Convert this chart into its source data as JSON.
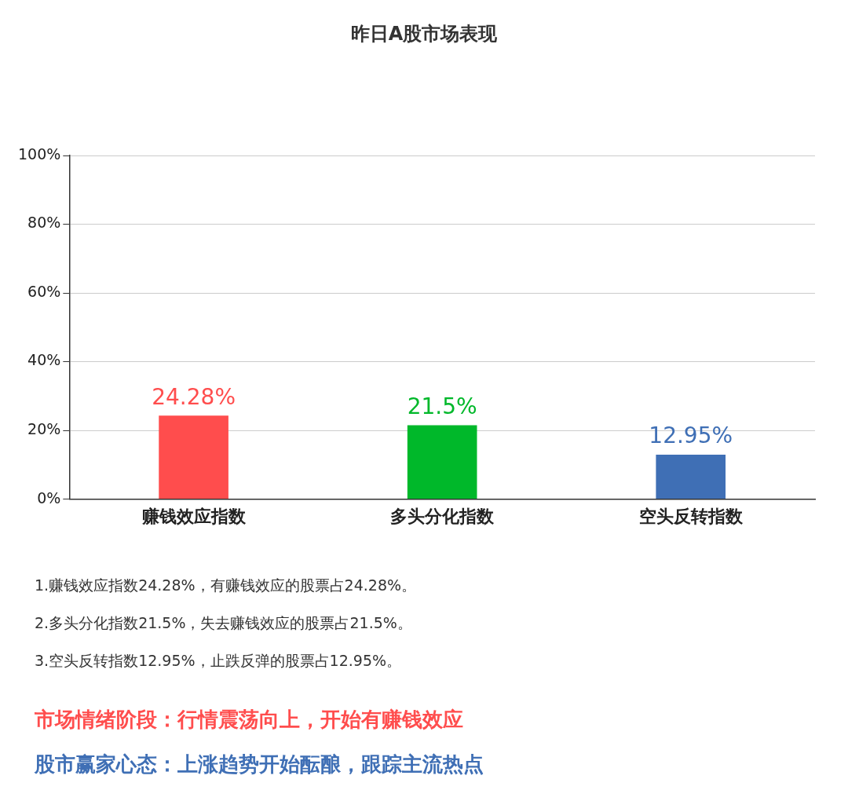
{
  "chart_data": {
    "type": "bar",
    "title": "昨日A股市场表现",
    "categories": [
      "赚钱效应指数",
      "多头分化指数",
      "空头反转指数"
    ],
    "values": [
      24.28,
      21.5,
      12.95
    ],
    "colors": [
      "#ff4d4d",
      "#00b82a",
      "#3f6fb5"
    ],
    "value_labels": [
      "24.28%",
      "21.5%",
      "12.95%"
    ],
    "ylim": [
      0,
      100
    ],
    "yticks": [
      {
        "value": 0,
        "label": "0%"
      },
      {
        "value": 20,
        "label": "20%"
      },
      {
        "value": 40,
        "label": "40%"
      },
      {
        "value": 60,
        "label": "60%"
      },
      {
        "value": 80,
        "label": "80%"
      },
      {
        "value": 100,
        "label": "100%"
      }
    ],
    "grid": "y",
    "legend": false,
    "annotations": [
      "1.赚钱效应指数24.28%，有赚钱效应的股票占24.28%。",
      "2.多头分化指数21.5%，失去赚钱效应的股票占21.5%。",
      "3.空头反转指数12.95%，止跌反弹的股票占12.95%。",
      "市场情绪阶段：行情震荡向上，开始有赚钱效应",
      "股市赢家心态：上涨趋势开始酝酿，跟踪主流热点"
    ]
  }
}
